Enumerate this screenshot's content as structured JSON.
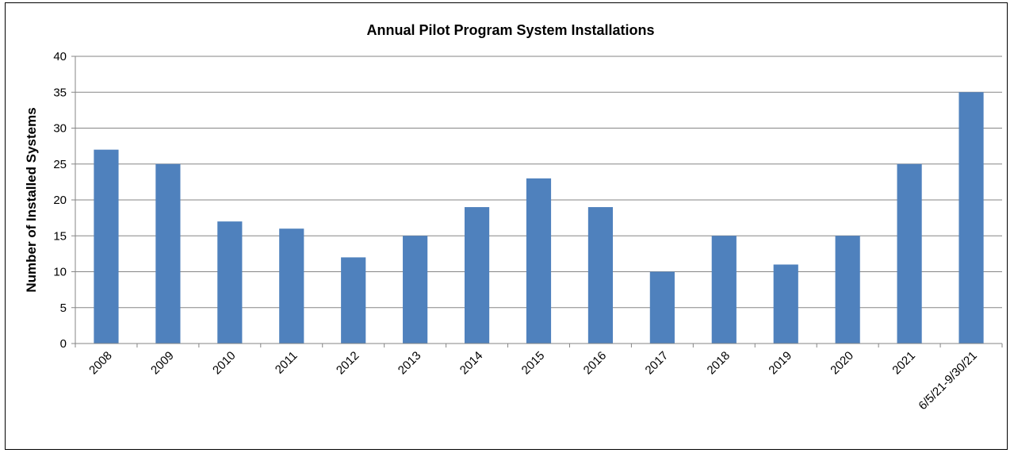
{
  "chart_data": {
    "type": "bar",
    "title": "Annual Pilot Program System Installations",
    "xlabel": "",
    "ylabel": "Number of Installed Systems",
    "categories": [
      "2008",
      "2009",
      "2010",
      "2011",
      "2012",
      "2013",
      "2014",
      "2015",
      "2016",
      "2017",
      "2018",
      "2019",
      "2020",
      "2021",
      "6/5/21-9/30/21"
    ],
    "values": [
      27,
      25,
      17,
      16,
      12,
      15,
      19,
      23,
      19,
      10,
      15,
      11,
      15,
      25,
      35
    ],
    "ylim": [
      0,
      40
    ],
    "yticks": [
      0,
      5,
      10,
      15,
      20,
      25,
      30,
      35,
      40
    ],
    "grid": true,
    "legend": "none",
    "bar_color": "#4F81BD"
  }
}
